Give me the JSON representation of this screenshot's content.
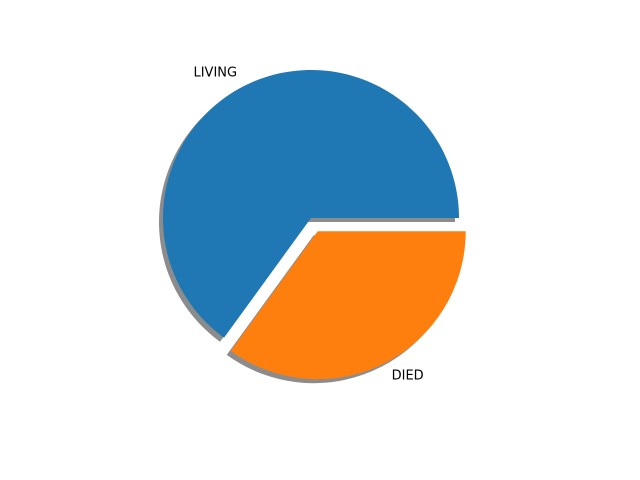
{
  "chart_data": {
    "type": "pie",
    "title": "",
    "categories": [
      "LIVING",
      "DIED"
    ],
    "values": [
      65,
      35
    ],
    "colors": [
      "#1f77b4",
      "#ff7f0e"
    ],
    "explode": [
      0,
      0.1
    ],
    "shadow": true,
    "start_angle": 0,
    "direction": "counterclockwise",
    "legend": "none"
  }
}
